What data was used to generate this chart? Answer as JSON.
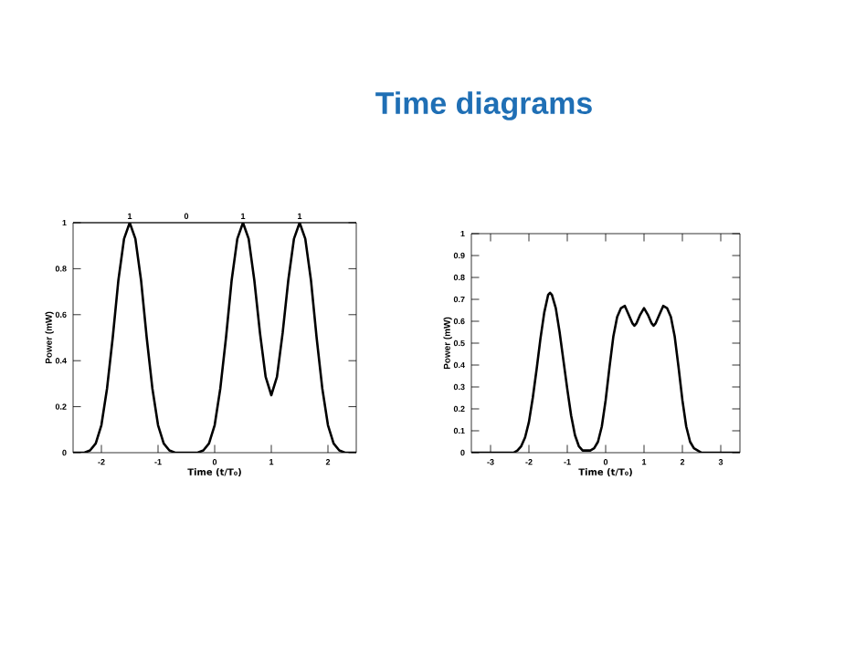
{
  "chart_data": [
    {
      "type": "line",
      "xlabel": "Time (t/T₀)",
      "ylabel": "Power (mW)",
      "xlim": [
        -2.5,
        2.5
      ],
      "xticks": [
        -2,
        -1,
        0,
        1,
        2
      ],
      "ylim": [
        0,
        1
      ],
      "yticks": [
        0,
        0.2,
        0.4,
        0.6,
        0.8,
        1
      ],
      "x2lim": [
        -2.5,
        2.5
      ],
      "x2ticks": [
        {
          "value": -1.5,
          "label": "1"
        },
        {
          "value": -0.5,
          "label": "0"
        },
        {
          "value": 0.5,
          "label": "1"
        },
        {
          "value": 1.5,
          "label": "1"
        }
      ],
      "series": [
        {
          "color": "#000000",
          "x": [
            -2.5,
            -2.3,
            -2.2,
            -2.1,
            -2.0,
            -1.9,
            -1.8,
            -1.7,
            -1.6,
            -1.5,
            -1.4,
            -1.3,
            -1.2,
            -1.1,
            -1.0,
            -0.9,
            -0.8,
            -0.7,
            -0.3,
            -0.2,
            -0.1,
            0.0,
            0.1,
            0.2,
            0.3,
            0.4,
            0.5,
            0.6,
            0.7,
            0.8,
            0.9,
            1.0,
            1.1,
            1.2,
            1.3,
            1.4,
            1.5,
            1.6,
            1.7,
            1.8,
            1.9,
            2.0,
            2.1,
            2.2,
            2.3,
            2.5
          ],
          "values": [
            0,
            0,
            0.01,
            0.04,
            0.12,
            0.28,
            0.5,
            0.75,
            0.93,
            1,
            0.93,
            0.75,
            0.5,
            0.28,
            0.12,
            0.04,
            0.01,
            0,
            0,
            0.01,
            0.04,
            0.12,
            0.28,
            0.5,
            0.75,
            0.93,
            1,
            0.93,
            0.75,
            0.52,
            0.33,
            0.25,
            0.33,
            0.52,
            0.75,
            0.93,
            1,
            0.93,
            0.75,
            0.5,
            0.28,
            0.12,
            0.04,
            0.01,
            0,
            0
          ]
        }
      ]
    },
    {
      "type": "line",
      "title": "Time diagrams",
      "xlabel": "Time (t/T₀)",
      "ylabel": "Power (mW)",
      "xlim": [
        -3.5,
        3.5
      ],
      "xticks": [
        -3,
        -2,
        -1,
        0,
        1,
        2,
        3
      ],
      "ylim": [
        0,
        1
      ],
      "yticks": [
        0,
        0.1,
        0.2,
        0.3,
        0.4,
        0.5,
        0.6,
        0.7,
        0.8,
        0.9,
        1
      ],
      "series": [
        {
          "color": "#000000",
          "x": [
            -3.5,
            -2.4,
            -2.3,
            -2.2,
            -2.1,
            -2.0,
            -1.9,
            -1.8,
            -1.7,
            -1.6,
            -1.5,
            -1.45,
            -1.4,
            -1.3,
            -1.2,
            -1.1,
            -1.0,
            -0.9,
            -0.8,
            -0.7,
            -0.6,
            -0.5,
            -0.4,
            -0.3,
            -0.2,
            -0.1,
            0.0,
            0.1,
            0.2,
            0.3,
            0.4,
            0.5,
            0.6,
            0.7,
            0.75,
            0.8,
            0.9,
            1.0,
            1.1,
            1.2,
            1.25,
            1.3,
            1.4,
            1.5,
            1.6,
            1.7,
            1.8,
            1.9,
            2.0,
            2.1,
            2.2,
            2.3,
            2.4,
            2.5,
            3.5
          ],
          "values": [
            0,
            0,
            0.01,
            0.03,
            0.07,
            0.14,
            0.25,
            0.38,
            0.52,
            0.64,
            0.72,
            0.73,
            0.72,
            0.66,
            0.55,
            0.42,
            0.29,
            0.17,
            0.08,
            0.03,
            0.01,
            0.01,
            0.01,
            0.02,
            0.05,
            0.12,
            0.24,
            0.39,
            0.53,
            0.62,
            0.66,
            0.67,
            0.63,
            0.59,
            0.58,
            0.59,
            0.63,
            0.66,
            0.63,
            0.59,
            0.58,
            0.59,
            0.63,
            0.67,
            0.66,
            0.62,
            0.53,
            0.39,
            0.24,
            0.12,
            0.05,
            0.02,
            0.01,
            0,
            0
          ]
        }
      ]
    }
  ]
}
